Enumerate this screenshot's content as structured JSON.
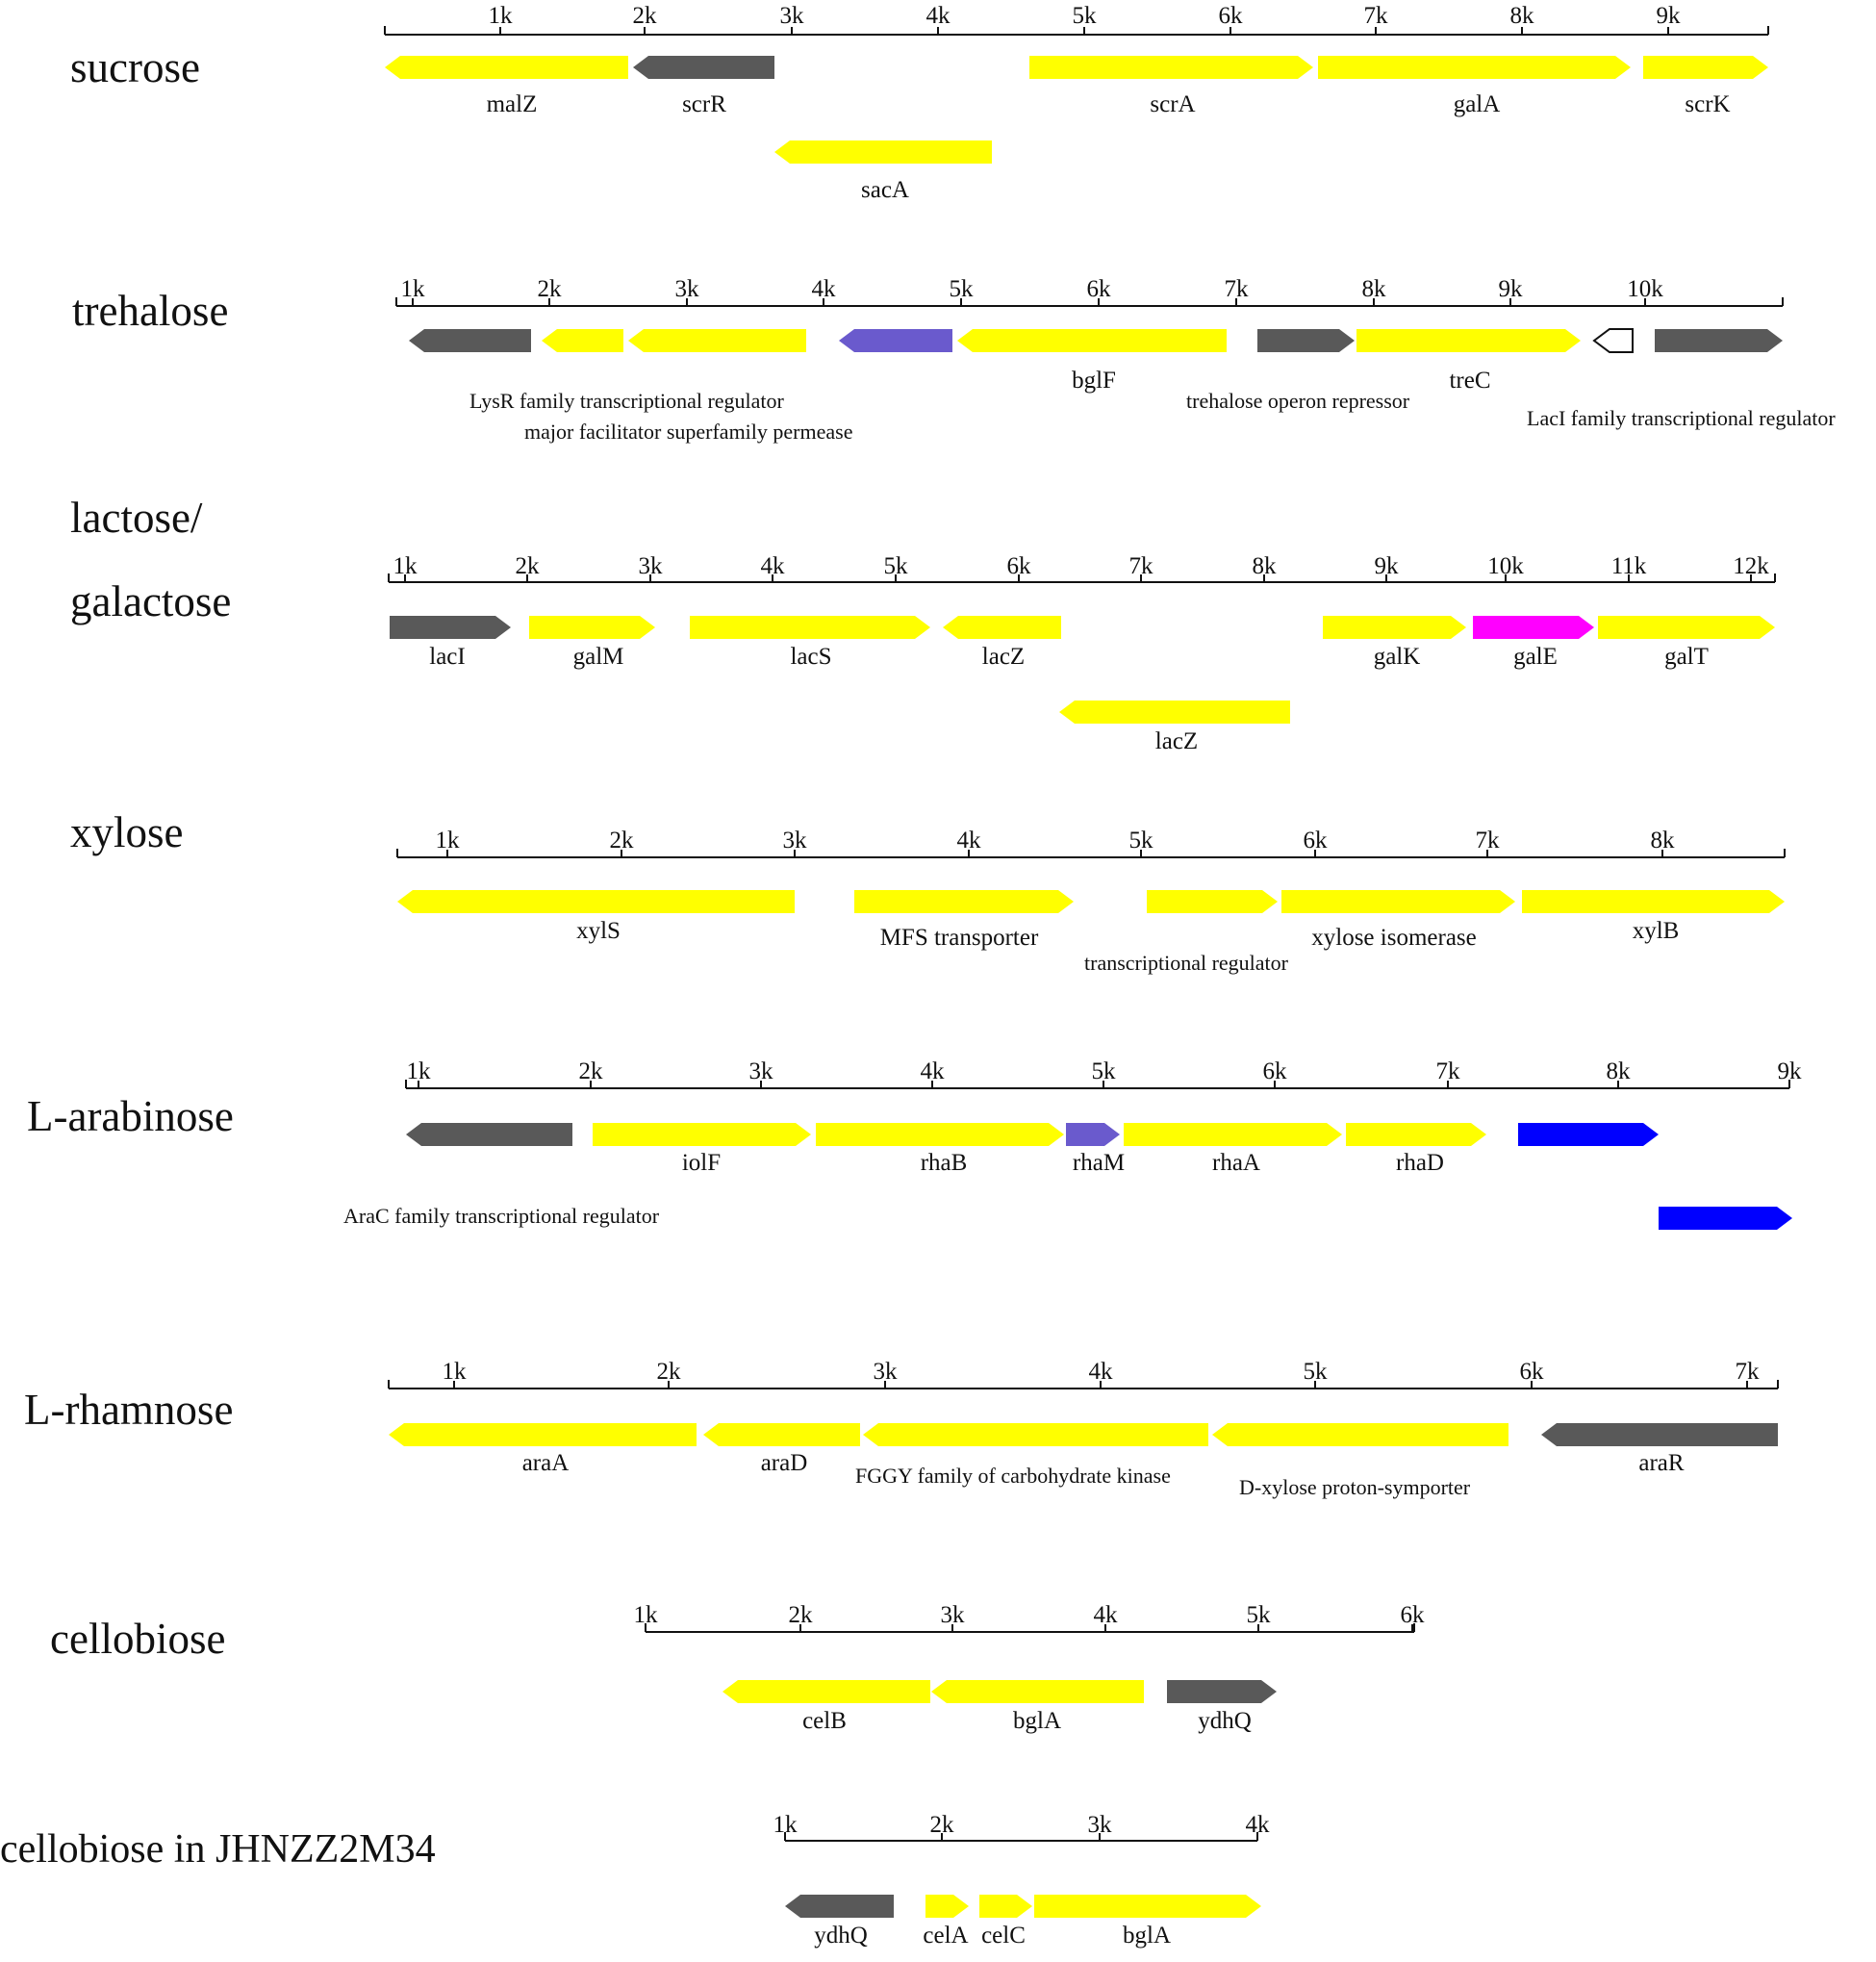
{
  "colors": {
    "yellow": "#ffff00",
    "gray": "#595959",
    "purple": "#6a5acd",
    "magenta": "#ff00ff",
    "blue": "#0000ff",
    "white": "#ffffff"
  },
  "tracks": [
    {
      "label": "sucrose",
      "ticks": [
        "1k",
        "2k",
        "3k",
        "4k",
        "5k",
        "6k",
        "7k",
        "8k",
        "9k"
      ],
      "genes": [
        {
          "name": "malZ",
          "strand": "-",
          "color": "yellow",
          "row": 0
        },
        {
          "name": "scrR",
          "strand": "-",
          "color": "gray",
          "row": 0
        },
        {
          "name": "scrA",
          "strand": "+",
          "color": "yellow",
          "row": 0
        },
        {
          "name": "galA",
          "strand": "+",
          "color": "yellow",
          "row": 0
        },
        {
          "name": "scrK",
          "strand": "+",
          "color": "yellow",
          "row": 0
        },
        {
          "name": "sacA",
          "strand": "-",
          "color": "yellow",
          "row": 1
        }
      ]
    },
    {
      "label": "trehalose",
      "ticks": [
        "1k",
        "2k",
        "3k",
        "4k",
        "5k",
        "6k",
        "7k",
        "8k",
        "9k",
        "10k"
      ],
      "genes": [
        {
          "name": "",
          "strand": "-",
          "color": "gray",
          "row": 0
        },
        {
          "name": "",
          "strand": "-",
          "color": "yellow",
          "row": 0
        },
        {
          "name": "",
          "strand": "-",
          "color": "yellow",
          "row": 0
        },
        {
          "name": "",
          "strand": "-",
          "color": "purple",
          "row": 0
        },
        {
          "name": "bglF",
          "strand": "-",
          "color": "yellow",
          "row": 0
        },
        {
          "name": "",
          "strand": "+",
          "color": "gray",
          "row": 0
        },
        {
          "name": "treC",
          "strand": "+",
          "color": "yellow",
          "row": 0
        },
        {
          "name": "",
          "strand": "-",
          "color": "white",
          "row": 0
        },
        {
          "name": "",
          "strand": "+",
          "color": "gray",
          "row": 0
        }
      ],
      "annotations": [
        "LysR family transcriptional regulator",
        "major facilitator superfamily permease",
        "trehalose operon repressor",
        "LacI family transcriptional regulator"
      ]
    },
    {
      "label": "lactose/",
      "label2": "galactose",
      "ticks": [
        "1k",
        "2k",
        "3k",
        "4k",
        "5k",
        "6k",
        "7k",
        "8k",
        "9k",
        "10k",
        "11k",
        "12k"
      ],
      "genes": [
        {
          "name": "lacI",
          "strand": "+",
          "color": "gray",
          "row": 0
        },
        {
          "name": "galM",
          "strand": "+",
          "color": "yellow",
          "row": 0
        },
        {
          "name": "lacS",
          "strand": "+",
          "color": "yellow",
          "row": 0
        },
        {
          "name": "lacZ",
          "strand": "-",
          "color": "yellow",
          "row": 0
        },
        {
          "name": "galK",
          "strand": "+",
          "color": "yellow",
          "row": 0
        },
        {
          "name": "galE",
          "strand": "+",
          "color": "magenta",
          "row": 0
        },
        {
          "name": "galT",
          "strand": "+",
          "color": "yellow",
          "row": 0
        },
        {
          "name": "lacZ",
          "strand": "-",
          "color": "yellow",
          "row": 1
        }
      ]
    },
    {
      "label": "xylose",
      "ticks": [
        "1k",
        "2k",
        "3k",
        "4k",
        "5k",
        "6k",
        "7k",
        "8k"
      ],
      "genes": [
        {
          "name": "xylS",
          "strand": "-",
          "color": "yellow",
          "row": 0
        },
        {
          "name": "MFS transporter",
          "strand": "+",
          "color": "yellow",
          "row": 0
        },
        {
          "name": "",
          "strand": "+",
          "color": "yellow",
          "row": 0
        },
        {
          "name": "xylose isomerase",
          "strand": "+",
          "color": "yellow",
          "row": 0
        },
        {
          "name": "xylB",
          "strand": "+",
          "color": "yellow",
          "row": 0
        }
      ],
      "annotations": [
        "transcriptional regulator"
      ]
    },
    {
      "label": "L-arabinose",
      "ticks": [
        "1k",
        "2k",
        "3k",
        "4k",
        "5k",
        "6k",
        "7k",
        "8k",
        "9k"
      ],
      "genes": [
        {
          "name": "",
          "strand": "-",
          "color": "gray",
          "row": 0
        },
        {
          "name": "iolF",
          "strand": "+",
          "color": "yellow",
          "row": 0
        },
        {
          "name": "rhaB",
          "strand": "+",
          "color": "yellow",
          "row": 0
        },
        {
          "name": "rhaM",
          "strand": "+",
          "color": "purple",
          "row": 0
        },
        {
          "name": "rhaA",
          "strand": "+",
          "color": "yellow",
          "row": 0
        },
        {
          "name": "rhaD",
          "strand": "+",
          "color": "yellow",
          "row": 0
        },
        {
          "name": "",
          "strand": "+",
          "color": "blue",
          "row": 0
        },
        {
          "name": "",
          "strand": "+",
          "color": "blue",
          "row": 1
        }
      ],
      "annotations": [
        "AraC family transcriptional regulator"
      ]
    },
    {
      "label": "L-rhamnose",
      "ticks": [
        "1k",
        "2k",
        "3k",
        "4k",
        "5k",
        "6k",
        "7k"
      ],
      "genes": [
        {
          "name": "araA",
          "strand": "-",
          "color": "yellow",
          "row": 0
        },
        {
          "name": "araD",
          "strand": "-",
          "color": "yellow",
          "row": 0
        },
        {
          "name": "FGGY family of carbohydrate kinase",
          "strand": "-",
          "color": "yellow",
          "row": 0
        },
        {
          "name": "D-xylose proton-symporter",
          "strand": "-",
          "color": "yellow",
          "row": 0
        },
        {
          "name": "araR",
          "strand": "-",
          "color": "gray",
          "row": 0
        }
      ]
    },
    {
      "label": "cellobiose",
      "ticks": [
        "1k",
        "2k",
        "3k",
        "4k",
        "5k",
        "6k"
      ],
      "genes": [
        {
          "name": "celB",
          "strand": "-",
          "color": "yellow",
          "row": 0
        },
        {
          "name": "bglA",
          "strand": "-",
          "color": "yellow",
          "row": 0
        },
        {
          "name": "ydhQ",
          "strand": "+",
          "color": "gray",
          "row": 0
        }
      ]
    },
    {
      "label": "cellobiose in JHNZZ2M34",
      "ticks": [
        "1k",
        "2k",
        "3k",
        "4k"
      ],
      "genes": [
        {
          "name": "ydhQ",
          "strand": "-",
          "color": "gray",
          "row": 0
        },
        {
          "name": "celA",
          "strand": "+",
          "color": "yellow",
          "row": 0
        },
        {
          "name": "celC",
          "strand": "+",
          "color": "yellow",
          "row": 0
        },
        {
          "name": "bglA",
          "strand": "+",
          "color": "yellow",
          "row": 0
        }
      ]
    }
  ]
}
